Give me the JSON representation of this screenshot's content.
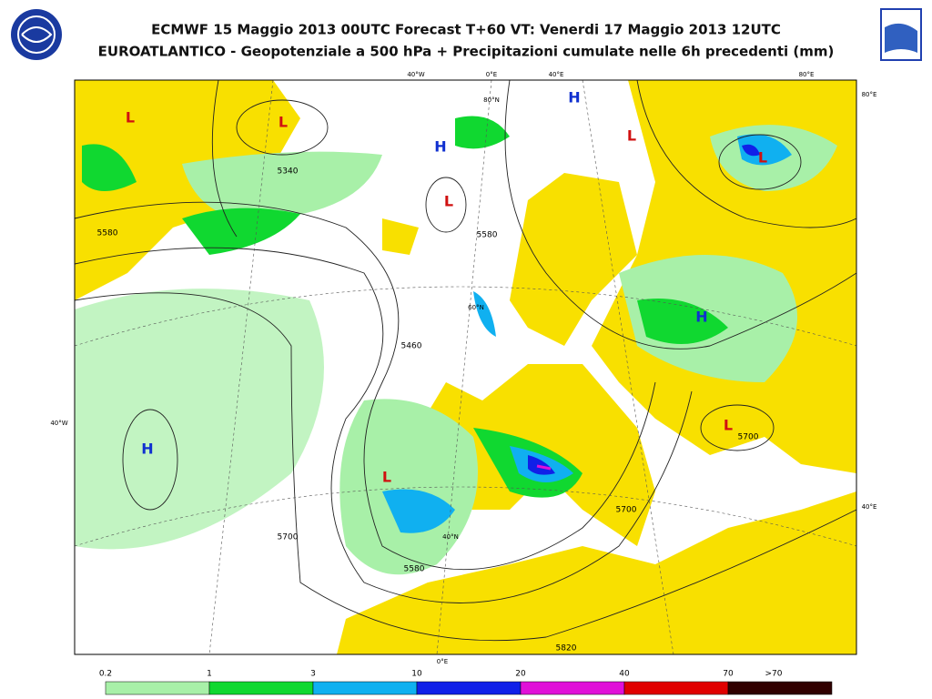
{
  "header": {
    "title": "ECMWF 15 Maggio 2013 00UTC Forecast T+60 VT: Venerdi 17 Maggio 2013 12UTC",
    "subtitle": "EUROATLANTICO - Geopotenziale a 500 hPa + Precipitazioni cumulate nelle 6h precedenti (mm)"
  },
  "map": {
    "pressure_centers": [
      "L",
      "L",
      "L",
      "L",
      "L",
      "L",
      "L",
      "H",
      "H",
      "H",
      "H"
    ],
    "contour_labels": [
      "5340",
      "5580",
      "5580",
      "5460",
      "5700",
      "5580",
      "5700",
      "5700",
      "5820"
    ],
    "grid_labels": [
      "40°W",
      "0°E",
      "40°E",
      "80°E",
      "80°E",
      "40°W",
      "40°E",
      "0°E",
      "80°N",
      "60°N",
      "40°N"
    ]
  },
  "legend": {
    "labels": [
      "0.2",
      "1",
      "3",
      "10",
      "20",
      "40",
      "70",
      ">70"
    ],
    "colors": [
      "#a8f0a8",
      "#10d830",
      "#10b0f0",
      "#1020e8",
      "#e010d8",
      "#e00000",
      "#300000"
    ]
  }
}
